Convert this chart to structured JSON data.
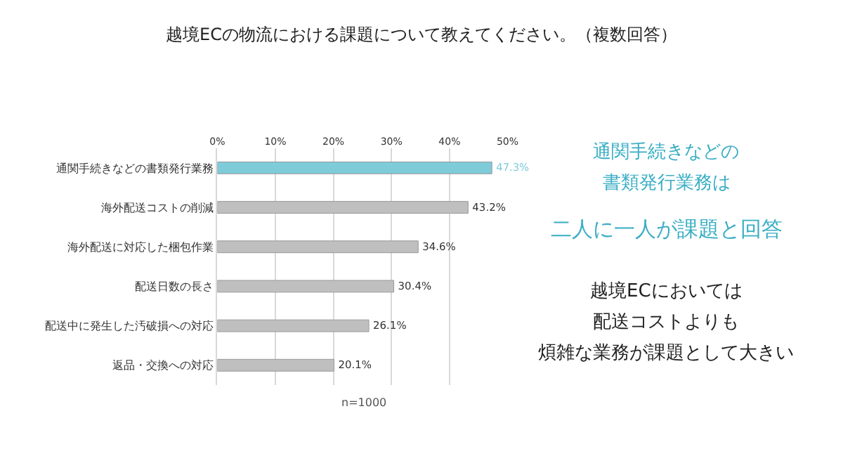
{
  "chart_data": {
    "type": "bar",
    "orientation": "horizontal",
    "title": "越境ECの物流における課題について教えてください。（複数回答）",
    "categories": [
      "通関手続きなどの書類発行業務",
      "海外配送コストの削減",
      "海外配送に対応した梱包作業",
      "配送日数の長さ",
      "配送中に発生した汚破損への対応",
      "返品・交換への対応"
    ],
    "values": [
      47.3,
      43.2,
      34.6,
      30.4,
      26.1,
      20.1
    ],
    "colors": [
      "#7ecbd9",
      "#bfbfbf",
      "#bfbfbf",
      "#bfbfbf",
      "#bfbfbf",
      "#bfbfbf"
    ],
    "value_labels": [
      "47.3%",
      "43.2%",
      "34.6%",
      "30.4%",
      "26.1%",
      "20.1%"
    ],
    "xlim": [
      0,
      50
    ],
    "xticks": [
      {
        "value": 0,
        "label": "0%"
      },
      {
        "value": 10,
        "label": "10%"
      },
      {
        "value": 20,
        "label": "20%"
      },
      {
        "value": 30,
        "label": "30%"
      },
      {
        "value": 40,
        "label": "40%"
      },
      {
        "value": 50,
        "label": "50%"
      }
    ],
    "grid": "x",
    "annotations": [
      "通関手続きなどの",
      "書類発行業務は",
      "二人に一人が課題と回答",
      "越境ECにおいては",
      "配送コストよりも",
      "煩雑な業務が課題として大きい",
      "n=1000"
    ]
  }
}
